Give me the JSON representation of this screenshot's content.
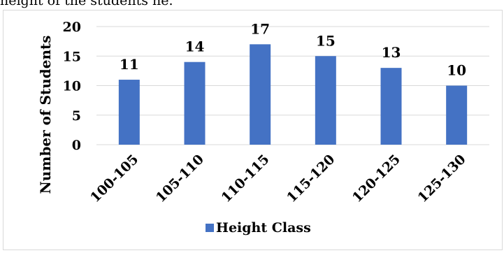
{
  "page": {
    "top_text": "height of the students he."
  },
  "chart_data": {
    "type": "bar",
    "categories": [
      "100-105",
      "105-110",
      "110-115",
      "115-120",
      "120-125",
      "125-130"
    ],
    "series": [
      {
        "name": "Height Class",
        "values": [
          11,
          14,
          17,
          15,
          13,
          10
        ],
        "color": "#4472c4"
      }
    ],
    "title": "",
    "xlabel": "",
    "ylabel": "Number of Students",
    "ylim": [
      0,
      20
    ],
    "yticks": [
      0,
      5,
      10,
      15,
      20
    ],
    "grid": true,
    "gridColor": "#d9d9d9",
    "legend": "bottom",
    "data_labels": true
  }
}
